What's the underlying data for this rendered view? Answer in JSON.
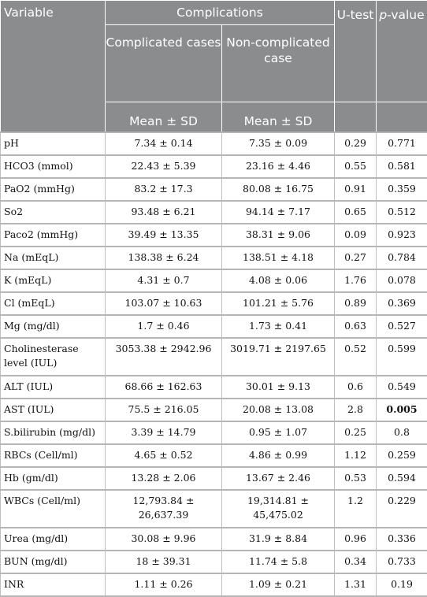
{
  "header": {
    "variable": "Variable",
    "complications": "Complications",
    "complicated_cases": "Complicated cases",
    "noncomplicated_case": "Non-complicated case",
    "mean_sd_1": "Mean ± SD",
    "mean_sd_2": "Mean ± SD",
    "utest": "U-test",
    "pvalue_p": "p",
    "pvalue_rest": "-value"
  },
  "rows": [
    {
      "variable": "pH",
      "complicated": "7.34 ± 0.14",
      "noncomplicated": "7.35 ± 0.09",
      "utest": "0.29",
      "pvalue": "0.771"
    },
    {
      "variable": "HCO3 (mmol)",
      "complicated": "22.43 ± 5.39",
      "noncomplicated": "23.16 ± 4.46",
      "utest": "0.55",
      "pvalue": "0.581"
    },
    {
      "variable": "PaO2 (mmHg)",
      "complicated": "83.2 ± 17.3",
      "noncomplicated": "80.08 ± 16.75",
      "utest": "0.91",
      "pvalue": "0.359"
    },
    {
      "variable": "So2",
      "complicated": "93.48 ± 6.21",
      "noncomplicated": "94.14 ± 7.17",
      "utest": "0.65",
      "pvalue": "0.512"
    },
    {
      "variable": "Paco2 (mmHg)",
      "complicated": "39.49 ± 13.35",
      "noncomplicated": "38.31 ± 9.06",
      "utest": "0.09",
      "pvalue": "0.923"
    },
    {
      "variable": "Na (mEqL)",
      "complicated": "138.38 ± 6.24",
      "noncomplicated": "138.51 ± 4.18",
      "utest": "0.27",
      "pvalue": "0.784"
    },
    {
      "variable": "K (mEqL)",
      "complicated": "4.31 ± 0.7",
      "noncomplicated": "4.08 ± 0.06",
      "utest": "1.76",
      "pvalue": "0.078"
    },
    {
      "variable": "Cl (mEqL)",
      "complicated": "103.07 ± 10.63",
      "noncomplicated": "101.21 ± 5.76",
      "utest": "0.89",
      "pvalue": "0.369"
    },
    {
      "variable": "Mg (mg/dl)",
      "complicated": "1.7 ± 0.46",
      "noncomplicated": "1.73 ± 0.41",
      "utest": "0.63",
      "pvalue": "0.527"
    },
    {
      "variable": "Cholinesterase level (IUL)",
      "complicated": "3053.38 ± 2942.96",
      "noncomplicated": "3019.71 ± 2197.65",
      "utest": "0.52",
      "pvalue": "0.599"
    },
    {
      "variable": "ALT (IUL)",
      "complicated": "68.66 ± 162.63",
      "noncomplicated": "30.01 ± 9.13",
      "utest": "0.6",
      "pvalue": "0.549"
    },
    {
      "variable": "AST (IUL)",
      "complicated": "75.5 ± 216.05",
      "noncomplicated": "20.08 ± 13.08",
      "utest": "2.8",
      "pvalue": "0.005"
    },
    {
      "variable": "S.bilirubin (mg/dl)",
      "complicated": "3.39 ± 14.79",
      "noncomplicated": "0.95 ± 1.07",
      "utest": "0.25",
      "pvalue": "0.8"
    },
    {
      "variable": "RBCs (Cell/ml)",
      "complicated": "4.65 ± 0.52",
      "noncomplicated": "4.86 ± 0.99",
      "utest": "1.12",
      "pvalue": "0.259"
    },
    {
      "variable": "Hb (gm/dl)",
      "complicated": "13.28 ± 2.06",
      "noncomplicated": "13.67 ± 2.46",
      "utest": "0.53",
      "pvalue": "0.594"
    },
    {
      "variable": "WBCs (Cell/ml)",
      "complicated": "12,793.84 ± 26,637.39",
      "noncomplicated": "19,314.81 ± 45,475.02",
      "utest": "1.2",
      "pvalue": "0.229"
    },
    {
      "variable": "Urea (mg/dl)",
      "complicated": "30.08 ± 9.96",
      "noncomplicated": "31.9 ± 8.84",
      "utest": "0.96",
      "pvalue": "0.336"
    },
    {
      "variable": "BUN (mg/dl)",
      "complicated": "18 ± 39.31",
      "noncomplicated": "11.74 ± 5.8",
      "utest": "0.34",
      "pvalue": "0.733"
    },
    {
      "variable": "INR",
      "complicated": "1.11 ± 0.26",
      "noncomplicated": "1.09 ± 0.21",
      "utest": "1.31",
      "pvalue": "0.19"
    }
  ]
}
